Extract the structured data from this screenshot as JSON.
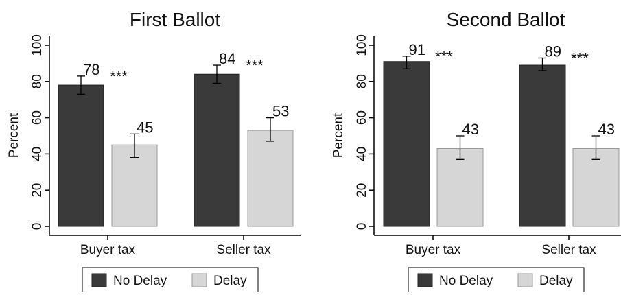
{
  "chart_data": [
    {
      "type": "bar",
      "title": "First Ballot",
      "ylabel": "Percent",
      "xlabel": "",
      "ylim": [
        0,
        100
      ],
      "yticks": [
        "0",
        "20",
        "40",
        "60",
        "80",
        "100"
      ],
      "categories": [
        "Buyer tax",
        "Seller tax"
      ],
      "series": [
        {
          "name": "No Delay",
          "color": "#3a3a3a",
          "values": [
            78,
            84
          ],
          "labels": [
            "78",
            "84"
          ],
          "ci_low": [
            73,
            79
          ],
          "ci_high": [
            83,
            89
          ]
        },
        {
          "name": "Delay",
          "color": "#d6d6d6",
          "values": [
            45,
            53
          ],
          "labels": [
            "45",
            "53"
          ],
          "ci_low": [
            38,
            47
          ],
          "ci_high": [
            51,
            60
          ]
        }
      ],
      "significance": [
        "***",
        "***"
      ],
      "grid": false,
      "legend_position": "bottom"
    },
    {
      "type": "bar",
      "title": "Second Ballot",
      "ylabel": "Percent",
      "xlabel": "",
      "ylim": [
        0,
        100
      ],
      "yticks": [
        "0",
        "20",
        "40",
        "60",
        "80",
        "100"
      ],
      "categories": [
        "Buyer tax",
        "Seller tax"
      ],
      "series": [
        {
          "name": "No Delay",
          "color": "#3a3a3a",
          "values": [
            91,
            89
          ],
          "labels": [
            "91",
            "89"
          ],
          "ci_low": [
            87,
            86
          ],
          "ci_high": [
            94,
            93
          ]
        },
        {
          "name": "Delay",
          "color": "#d6d6d6",
          "values": [
            43,
            43
          ],
          "labels": [
            "43",
            "43"
          ],
          "ci_low": [
            37,
            37
          ],
          "ci_high": [
            50,
            50
          ]
        }
      ],
      "significance": [
        "***",
        "***"
      ],
      "grid": false,
      "legend_position": "bottom"
    }
  ]
}
